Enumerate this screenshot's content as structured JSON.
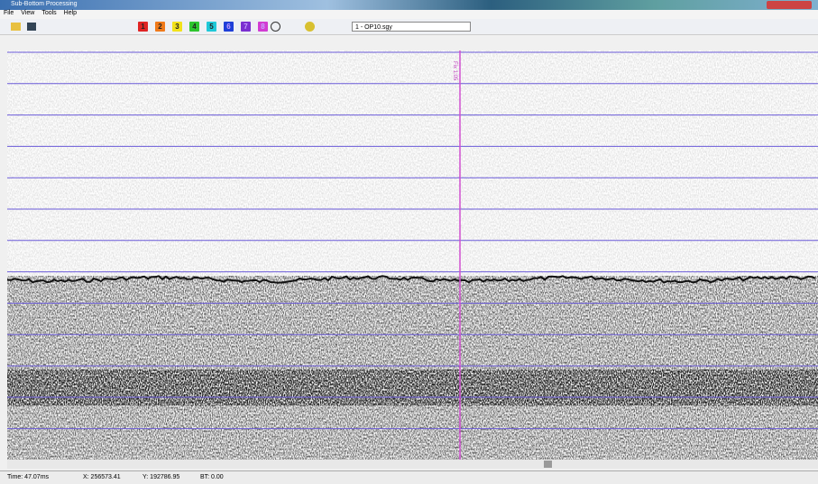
{
  "window": {
    "title": "Sub-Bottom Processing"
  },
  "menu": [
    "File",
    "View",
    "Tools",
    "Help"
  ],
  "toolbar": {
    "colors": [
      {
        "label": "1",
        "color": "#e02424"
      },
      {
        "label": "2",
        "color": "#f07a1a"
      },
      {
        "label": "3",
        "color": "#f2e21a"
      },
      {
        "label": "4",
        "color": "#2ec52e"
      },
      {
        "label": "5",
        "color": "#1ec8d8"
      },
      {
        "label": "6",
        "color": "#1f3fd8"
      },
      {
        "label": "7",
        "color": "#7a2fd0"
      },
      {
        "label": "8",
        "color": "#d23cd2"
      }
    ],
    "file": "1 - OP10.sgy"
  },
  "marker": "Fix 1:05",
  "status": [
    "Time: 47.07ms",
    "X: 256573.41",
    "Y: 192786.95",
    "BT: 0.00"
  ]
}
